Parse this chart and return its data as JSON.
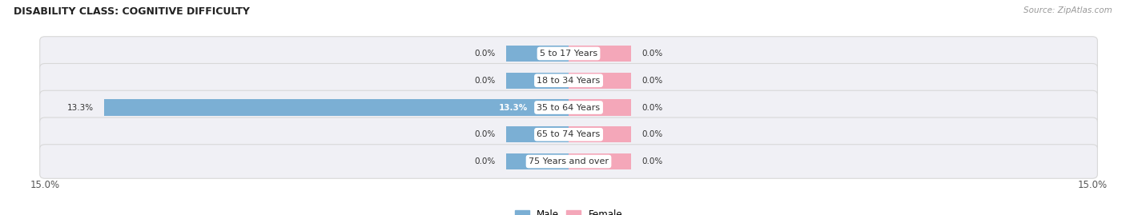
{
  "title": "DISABILITY CLASS: COGNITIVE DIFFICULTY",
  "source": "Source: ZipAtlas.com",
  "categories": [
    "5 to 17 Years",
    "18 to 34 Years",
    "35 to 64 Years",
    "65 to 74 Years",
    "75 Years and over"
  ],
  "male_values": [
    0.0,
    0.0,
    13.3,
    0.0,
    0.0
  ],
  "female_values": [
    0.0,
    0.0,
    0.0,
    0.0,
    0.0
  ],
  "x_max": 15.0,
  "male_color": "#7bafd4",
  "female_color": "#f4a7b9",
  "row_bg_color": "#f0f0f5",
  "row_edge_color": "#d8d8d8",
  "label_color": "#333333",
  "title_color": "#222222",
  "default_bar_size": 1.8,
  "bar_height": 0.6,
  "fig_width": 14.06,
  "fig_height": 2.69
}
